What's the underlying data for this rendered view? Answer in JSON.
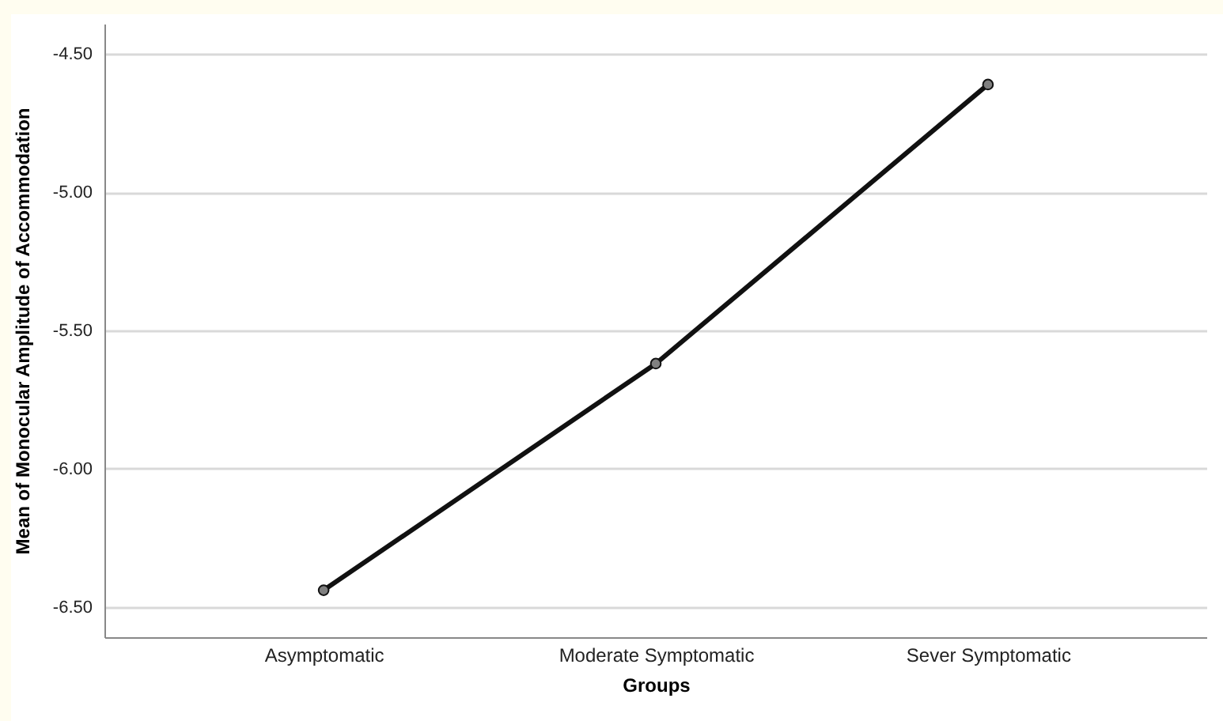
{
  "chart_data": {
    "type": "line",
    "xlabel": "Groups",
    "ylabel": "Mean of Monocular Amplitude of Accommodation",
    "categories": [
      "Asymptomatic",
      "Moderate Symptomatic",
      "Sever Symptomatic"
    ],
    "series": [
      {
        "color": "#111111",
        "values": [
          -6.44,
          -5.62,
          -4.61
        ]
      }
    ],
    "ylim": [
      -6.61,
      -4.39
    ],
    "yticks": [
      {
        "value": -6.5,
        "label": "-6.50"
      },
      {
        "value": -6.0,
        "label": "-6.00"
      },
      {
        "value": -5.5,
        "label": "-5.50"
      },
      {
        "value": -5.0,
        "label": "-5.00"
      },
      {
        "value": -4.5,
        "label": "-4.50"
      }
    ],
    "grid": "y",
    "marker": "circle",
    "line_style": "solid"
  }
}
